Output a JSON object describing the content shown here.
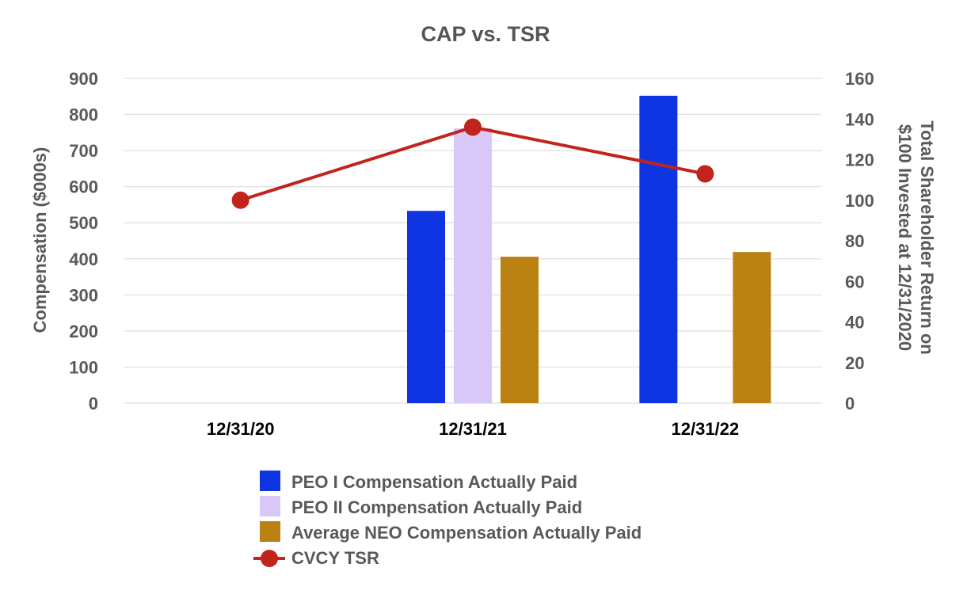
{
  "chart_data": {
    "type": "bar",
    "title": "CAP vs. TSR",
    "categories": [
      "12/31/20",
      "12/31/21",
      "12/31/22"
    ],
    "ylabel": "Compensation ($000s)",
    "ylim": [
      0,
      900
    ],
    "yticks": [
      0,
      100,
      200,
      300,
      400,
      500,
      600,
      700,
      800,
      900
    ],
    "y2label_line1": "Total Shareholder Return on",
    "y2label_line2": "$100 Invested at 12/31/2020",
    "y2lim": [
      0,
      160
    ],
    "y2ticks": [
      0,
      20,
      40,
      60,
      80,
      100,
      120,
      140,
      160
    ],
    "grid": true,
    "legend_position": "bottom",
    "series": [
      {
        "name": "PEO I Compensation Actually Paid",
        "type": "bar",
        "axis": "left",
        "color": "#0f35e3",
        "values": [
          null,
          533,
          852
        ]
      },
      {
        "name": "PEO II Compensation Actually Paid",
        "type": "bar",
        "axis": "left",
        "color": "#d8c8f7",
        "values": [
          null,
          762,
          null
        ]
      },
      {
        "name": "Average NEO Compensation Actually Paid",
        "type": "bar",
        "axis": "left",
        "color": "#b98212",
        "values": [
          null,
          406,
          419
        ]
      },
      {
        "name": "CVCY TSR",
        "type": "line",
        "axis": "right",
        "color": "#c1241d",
        "values": [
          100,
          136,
          113
        ]
      }
    ]
  }
}
